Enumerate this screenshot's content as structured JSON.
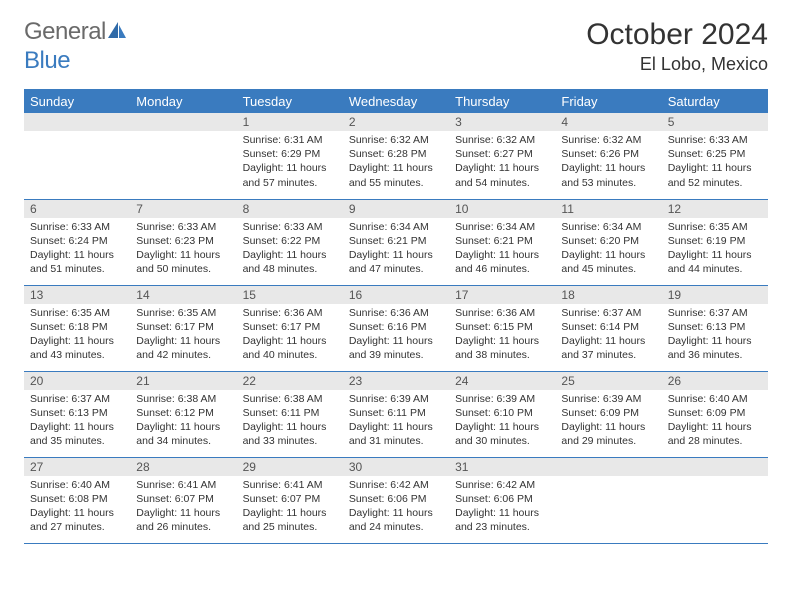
{
  "brand": {
    "general": "General",
    "blue": "Blue"
  },
  "title": "October 2024",
  "location": "El Lobo, Mexico",
  "colors": {
    "header_bg": "#3a7bbf",
    "header_text": "#ffffff",
    "daynum_bg": "#e8e8e8",
    "border": "#3a7bbf",
    "text": "#333333"
  },
  "weekdays": [
    "Sunday",
    "Monday",
    "Tuesday",
    "Wednesday",
    "Thursday",
    "Friday",
    "Saturday"
  ],
  "weeks": [
    [
      {
        "n": "",
        "sr": "",
        "ss": "",
        "dl": ""
      },
      {
        "n": "",
        "sr": "",
        "ss": "",
        "dl": ""
      },
      {
        "n": "1",
        "sr": "Sunrise: 6:31 AM",
        "ss": "Sunset: 6:29 PM",
        "dl": "Daylight: 11 hours and 57 minutes."
      },
      {
        "n": "2",
        "sr": "Sunrise: 6:32 AM",
        "ss": "Sunset: 6:28 PM",
        "dl": "Daylight: 11 hours and 55 minutes."
      },
      {
        "n": "3",
        "sr": "Sunrise: 6:32 AM",
        "ss": "Sunset: 6:27 PM",
        "dl": "Daylight: 11 hours and 54 minutes."
      },
      {
        "n": "4",
        "sr": "Sunrise: 6:32 AM",
        "ss": "Sunset: 6:26 PM",
        "dl": "Daylight: 11 hours and 53 minutes."
      },
      {
        "n": "5",
        "sr": "Sunrise: 6:33 AM",
        "ss": "Sunset: 6:25 PM",
        "dl": "Daylight: 11 hours and 52 minutes."
      }
    ],
    [
      {
        "n": "6",
        "sr": "Sunrise: 6:33 AM",
        "ss": "Sunset: 6:24 PM",
        "dl": "Daylight: 11 hours and 51 minutes."
      },
      {
        "n": "7",
        "sr": "Sunrise: 6:33 AM",
        "ss": "Sunset: 6:23 PM",
        "dl": "Daylight: 11 hours and 50 minutes."
      },
      {
        "n": "8",
        "sr": "Sunrise: 6:33 AM",
        "ss": "Sunset: 6:22 PM",
        "dl": "Daylight: 11 hours and 48 minutes."
      },
      {
        "n": "9",
        "sr": "Sunrise: 6:34 AM",
        "ss": "Sunset: 6:21 PM",
        "dl": "Daylight: 11 hours and 47 minutes."
      },
      {
        "n": "10",
        "sr": "Sunrise: 6:34 AM",
        "ss": "Sunset: 6:21 PM",
        "dl": "Daylight: 11 hours and 46 minutes."
      },
      {
        "n": "11",
        "sr": "Sunrise: 6:34 AM",
        "ss": "Sunset: 6:20 PM",
        "dl": "Daylight: 11 hours and 45 minutes."
      },
      {
        "n": "12",
        "sr": "Sunrise: 6:35 AM",
        "ss": "Sunset: 6:19 PM",
        "dl": "Daylight: 11 hours and 44 minutes."
      }
    ],
    [
      {
        "n": "13",
        "sr": "Sunrise: 6:35 AM",
        "ss": "Sunset: 6:18 PM",
        "dl": "Daylight: 11 hours and 43 minutes."
      },
      {
        "n": "14",
        "sr": "Sunrise: 6:35 AM",
        "ss": "Sunset: 6:17 PM",
        "dl": "Daylight: 11 hours and 42 minutes."
      },
      {
        "n": "15",
        "sr": "Sunrise: 6:36 AM",
        "ss": "Sunset: 6:17 PM",
        "dl": "Daylight: 11 hours and 40 minutes."
      },
      {
        "n": "16",
        "sr": "Sunrise: 6:36 AM",
        "ss": "Sunset: 6:16 PM",
        "dl": "Daylight: 11 hours and 39 minutes."
      },
      {
        "n": "17",
        "sr": "Sunrise: 6:36 AM",
        "ss": "Sunset: 6:15 PM",
        "dl": "Daylight: 11 hours and 38 minutes."
      },
      {
        "n": "18",
        "sr": "Sunrise: 6:37 AM",
        "ss": "Sunset: 6:14 PM",
        "dl": "Daylight: 11 hours and 37 minutes."
      },
      {
        "n": "19",
        "sr": "Sunrise: 6:37 AM",
        "ss": "Sunset: 6:13 PM",
        "dl": "Daylight: 11 hours and 36 minutes."
      }
    ],
    [
      {
        "n": "20",
        "sr": "Sunrise: 6:37 AM",
        "ss": "Sunset: 6:13 PM",
        "dl": "Daylight: 11 hours and 35 minutes."
      },
      {
        "n": "21",
        "sr": "Sunrise: 6:38 AM",
        "ss": "Sunset: 6:12 PM",
        "dl": "Daylight: 11 hours and 34 minutes."
      },
      {
        "n": "22",
        "sr": "Sunrise: 6:38 AM",
        "ss": "Sunset: 6:11 PM",
        "dl": "Daylight: 11 hours and 33 minutes."
      },
      {
        "n": "23",
        "sr": "Sunrise: 6:39 AM",
        "ss": "Sunset: 6:11 PM",
        "dl": "Daylight: 11 hours and 31 minutes."
      },
      {
        "n": "24",
        "sr": "Sunrise: 6:39 AM",
        "ss": "Sunset: 6:10 PM",
        "dl": "Daylight: 11 hours and 30 minutes."
      },
      {
        "n": "25",
        "sr": "Sunrise: 6:39 AM",
        "ss": "Sunset: 6:09 PM",
        "dl": "Daylight: 11 hours and 29 minutes."
      },
      {
        "n": "26",
        "sr": "Sunrise: 6:40 AM",
        "ss": "Sunset: 6:09 PM",
        "dl": "Daylight: 11 hours and 28 minutes."
      }
    ],
    [
      {
        "n": "27",
        "sr": "Sunrise: 6:40 AM",
        "ss": "Sunset: 6:08 PM",
        "dl": "Daylight: 11 hours and 27 minutes."
      },
      {
        "n": "28",
        "sr": "Sunrise: 6:41 AM",
        "ss": "Sunset: 6:07 PM",
        "dl": "Daylight: 11 hours and 26 minutes."
      },
      {
        "n": "29",
        "sr": "Sunrise: 6:41 AM",
        "ss": "Sunset: 6:07 PM",
        "dl": "Daylight: 11 hours and 25 minutes."
      },
      {
        "n": "30",
        "sr": "Sunrise: 6:42 AM",
        "ss": "Sunset: 6:06 PM",
        "dl": "Daylight: 11 hours and 24 minutes."
      },
      {
        "n": "31",
        "sr": "Sunrise: 6:42 AM",
        "ss": "Sunset: 6:06 PM",
        "dl": "Daylight: 11 hours and 23 minutes."
      },
      {
        "n": "",
        "sr": "",
        "ss": "",
        "dl": ""
      },
      {
        "n": "",
        "sr": "",
        "ss": "",
        "dl": ""
      }
    ]
  ]
}
